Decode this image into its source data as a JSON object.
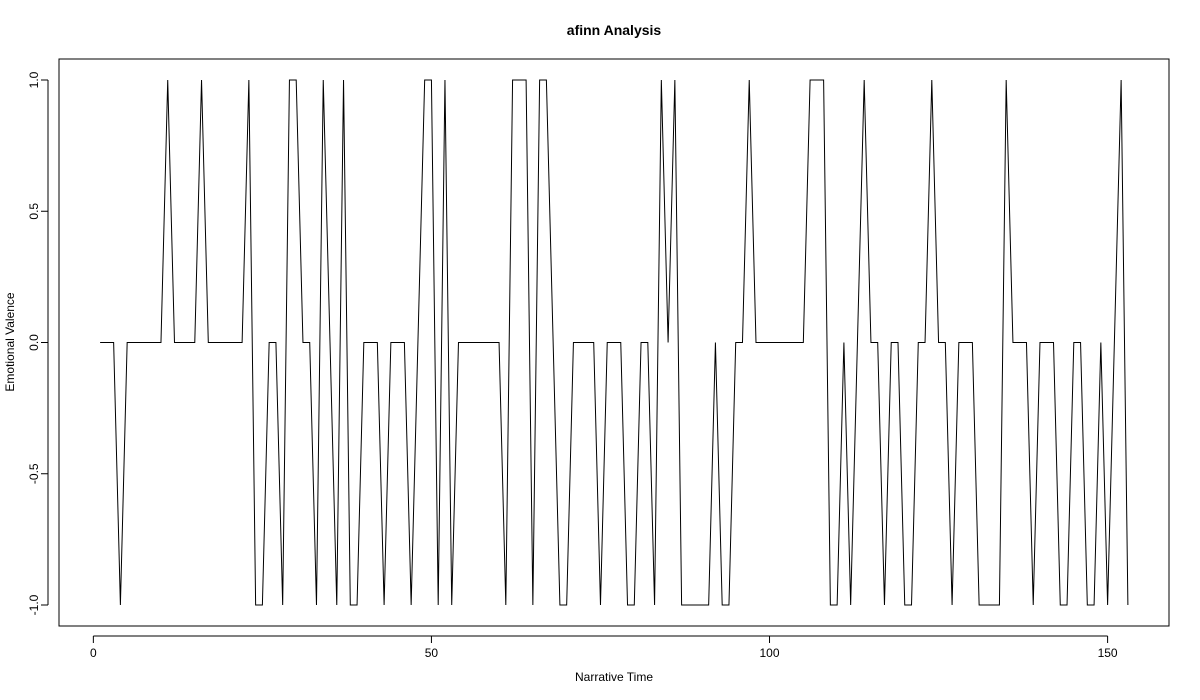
{
  "chart_data": {
    "type": "line",
    "title": "afinn Analysis",
    "x_label": "Narrative Time",
    "y_label": "Emotional Valence",
    "x": [
      1,
      2,
      3,
      4,
      5,
      6,
      7,
      8,
      9,
      10,
      11,
      12,
      13,
      14,
      15,
      16,
      17,
      18,
      19,
      20,
      21,
      22,
      23,
      24,
      25,
      26,
      27,
      28,
      29,
      30,
      31,
      32,
      33,
      34,
      35,
      36,
      37,
      38,
      39,
      40,
      41,
      42,
      43,
      44,
      45,
      46,
      47,
      48,
      49,
      50,
      51,
      52,
      53,
      54,
      55,
      56,
      57,
      58,
      59,
      60,
      61,
      62,
      63,
      64,
      65,
      66,
      67,
      68,
      69,
      70,
      71,
      72,
      73,
      74,
      75,
      76,
      77,
      78,
      79,
      80,
      81,
      82,
      83,
      84,
      85,
      86,
      87,
      88,
      89,
      90,
      91,
      92,
      93,
      94,
      95,
      96,
      97,
      98,
      99,
      100,
      101,
      102,
      103,
      104,
      105,
      106,
      107,
      108,
      109,
      110,
      111,
      112,
      113,
      114,
      115,
      116,
      117,
      118,
      119,
      120,
      121,
      122,
      123,
      124,
      125,
      126,
      127,
      128,
      129,
      130,
      131,
      132,
      133,
      134,
      135,
      136,
      137,
      138,
      139,
      140,
      141,
      142,
      143,
      144,
      145,
      146,
      147,
      148,
      149,
      150,
      151,
      152,
      153
    ],
    "series": [
      {
        "color": "#000000",
        "values": [
          0,
          0,
          0,
          -1,
          0,
          0,
          0,
          0,
          0,
          0,
          1,
          0,
          0,
          0,
          0,
          1,
          0,
          0,
          0,
          0,
          0,
          0,
          1,
          -1,
          -1,
          0,
          0,
          -1,
          1,
          1,
          0,
          0,
          -1,
          1,
          0,
          -1,
          1,
          -1,
          -1,
          0,
          0,
          0,
          -1,
          0,
          0,
          0,
          -1,
          0,
          1,
          1,
          -1,
          1,
          -1,
          0,
          0,
          0,
          0,
          0,
          0,
          0,
          -1,
          1,
          1,
          1,
          -1,
          1,
          1,
          0,
          -1,
          -1,
          0,
          0,
          0,
          0,
          -1,
          0,
          0,
          0,
          -1,
          -1,
          0,
          0,
          -1,
          1,
          0,
          1,
          -1,
          -1,
          -1,
          -1,
          -1,
          0,
          -1,
          -1,
          0,
          0,
          1,
          0,
          0,
          0,
          0,
          0,
          0,
          0,
          0,
          1,
          1,
          1,
          -1,
          -1,
          0,
          -1,
          0,
          1,
          0,
          0,
          -1,
          0,
          0,
          -1,
          -1,
          0,
          0,
          1,
          0,
          0,
          -1,
          0,
          0,
          0,
          -1,
          -1,
          -1,
          -1,
          1,
          0,
          0,
          0,
          -1,
          0,
          0,
          0,
          -1,
          -1,
          0,
          0,
          -1,
          -1,
          0,
          -1,
          0,
          1,
          -1
        ]
      }
    ],
    "xlim": [
      -5.08,
      159.08
    ],
    "ylim": [
      -1.08,
      1.08
    ],
    "xticks": [
      0,
      50,
      100,
      150
    ],
    "yticks": [
      {
        "value": -1,
        "label": "-1.0"
      },
      {
        "value": -0.5,
        "label": "-0.5"
      },
      {
        "value": 0,
        "label": "0.0"
      },
      {
        "value": 0.5,
        "label": "0.5"
      },
      {
        "value": 1,
        "label": "1.0"
      }
    ]
  }
}
